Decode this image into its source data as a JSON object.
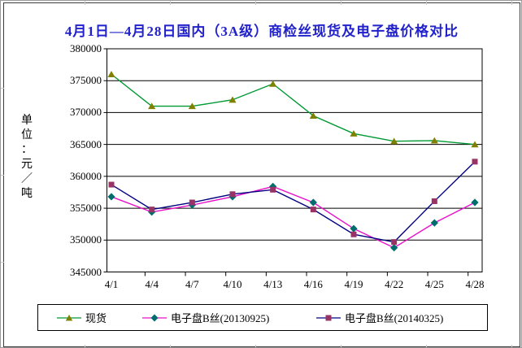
{
  "chart_data": {
    "type": "line",
    "title": "4月1日—4月28日国内（3A级）商检丝现货及电子盘价格对比",
    "title_color": "#2222cc",
    "y_axis_title": "单位：元/吨",
    "y_axis_title_chars": [
      "单",
      "位",
      "：",
      "元",
      "／",
      "吨"
    ],
    "categories": [
      "4/1",
      "4/4",
      "4/7",
      "4/10",
      "4/13",
      "4/16",
      "4/19",
      "4/22",
      "4/25",
      "4/28"
    ],
    "y_ticks": [
      "380000",
      "375000",
      "370000",
      "365000",
      "360000",
      "355000",
      "350000",
      "345000"
    ],
    "ylim": [
      345000,
      380000
    ],
    "y_tick_step": 5000,
    "grid": true,
    "legend_position": "bottom",
    "series": [
      {
        "name": "现货",
        "marker": "triangle",
        "line_color": "#009933",
        "marker_color": "#808000",
        "values": [
          376000,
          371000,
          371000,
          372000,
          374500,
          369500,
          366700,
          365500,
          365600,
          365000
        ]
      },
      {
        "name": "电子盘B丝(20130925)",
        "marker": "diamond",
        "line_color": "#e810c8",
        "marker_color": "#006d6d",
        "values": [
          356800,
          354400,
          355500,
          356800,
          358400,
          355900,
          351800,
          348800,
          352700,
          355900
        ]
      },
      {
        "name": "电子盘B丝(20140325)",
        "marker": "square",
        "line_color": "#000080",
        "marker_color": "#993366",
        "values": [
          358700,
          354800,
          355900,
          357200,
          357900,
          354800,
          350900,
          349700,
          356100,
          362300
        ]
      }
    ]
  }
}
